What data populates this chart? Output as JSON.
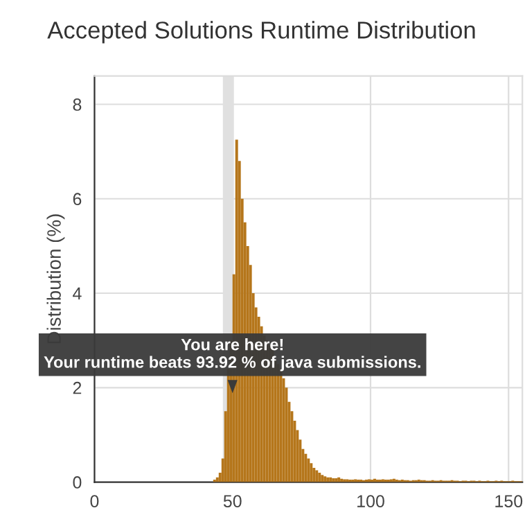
{
  "chart_data": {
    "type": "histogram",
    "title": "Accepted Solutions Runtime Distribution",
    "ylabel": "Distribution (%)",
    "color": "#b5761b",
    "bins": [
      43,
      44,
      45,
      46,
      47,
      48,
      49,
      50,
      51,
      52,
      53,
      54,
      55,
      56,
      57,
      58,
      59,
      60,
      61,
      62,
      63,
      64,
      65,
      66,
      67,
      68,
      69,
      70,
      71,
      72,
      73,
      74,
      75,
      76,
      77,
      78,
      79,
      80,
      81,
      82,
      83,
      84,
      85,
      86,
      87,
      88,
      89,
      90,
      91,
      92,
      93,
      94,
      95,
      96,
      97,
      98,
      99,
      100,
      101,
      102,
      103,
      104,
      105,
      106,
      107,
      108,
      109,
      110,
      111,
      112,
      113,
      114,
      115,
      116,
      117,
      118,
      119,
      120,
      121,
      122,
      123,
      124,
      125,
      126,
      127,
      128,
      129,
      130,
      131,
      132,
      133,
      134,
      135,
      136,
      137,
      138,
      139,
      140,
      141,
      142,
      143,
      144,
      145,
      146,
      147,
      148,
      149,
      150,
      151,
      152,
      153,
      154,
      155
    ],
    "values": [
      0.05,
      0.1,
      0.2,
      0.5,
      1.5,
      2.4,
      3.0,
      4.4,
      7.25,
      6.8,
      6.0,
      5.5,
      5.0,
      4.6,
      4.0,
      3.7,
      3.5,
      3.3,
      3.1,
      3.0,
      2.9,
      2.8,
      2.6,
      2.5,
      2.4,
      2.2,
      2.0,
      1.7,
      1.5,
      1.3,
      1.1,
      0.9,
      0.7,
      0.6,
      0.5,
      0.4,
      0.3,
      0.25,
      0.2,
      0.15,
      0.12,
      0.1,
      0.1,
      0.08,
      0.08,
      0.1,
      0.07,
      0.06,
      0.06,
      0.05,
      0.05,
      0.06,
      0.05,
      0.05,
      0.04,
      0.05,
      0.06,
      0.05,
      0.07,
      0.05,
      0.05,
      0.06,
      0.05,
      0.05,
      0.06,
      0.07,
      0.05,
      0.04,
      0.05,
      0.04,
      0.04,
      0.03,
      0.04,
      0.04,
      0.05,
      0.04,
      0.04,
      0.03,
      0.03,
      0.04,
      0.03,
      0.03,
      0.04,
      0.03,
      0.03,
      0.03,
      0.04,
      0.03,
      0.03,
      0.02,
      0.03,
      0.03,
      0.02,
      0.03,
      0.03,
      0.02,
      0.03,
      0.02,
      0.02,
      0.03,
      0.02,
      0.02,
      0.03,
      0.02,
      0.03,
      0.02,
      0.02,
      0.02,
      0.03,
      0.02,
      0.02,
      0.02
    ],
    "xlim": [
      0,
      155
    ],
    "xticks": [
      0,
      50,
      100,
      150
    ],
    "ylim": [
      0,
      8.6
    ],
    "yticks": [
      0,
      2,
      4,
      6,
      8
    ],
    "grid": true,
    "bands": [
      {
        "axis": "x",
        "from": 46.5,
        "to": 50.5,
        "color": "#e0e0e0"
      }
    ],
    "annotations": [
      {
        "text": "You are here!\nYour runtime beats 93.92 % of java submissions.",
        "x": 50,
        "y": 1.8
      }
    ]
  }
}
